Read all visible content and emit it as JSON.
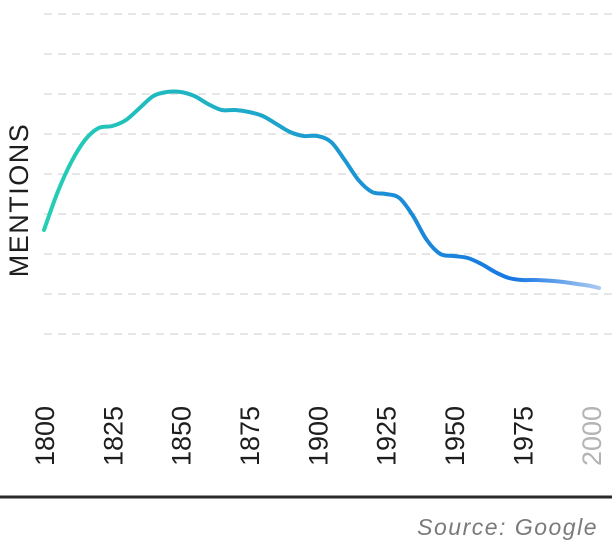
{
  "chart_data": {
    "type": "line",
    "title": "",
    "xlabel": "",
    "ylabel": "MENTIONS",
    "x": [
      1800,
      1805,
      1810,
      1815,
      1820,
      1825,
      1830,
      1835,
      1840,
      1845,
      1850,
      1855,
      1860,
      1865,
      1870,
      1875,
      1880,
      1885,
      1890,
      1895,
      1900,
      1905,
      1910,
      1915,
      1920,
      1925,
      1930,
      1935,
      1940,
      1945,
      1950,
      1955,
      1960,
      1965,
      1970,
      1975,
      1980,
      1985,
      1990,
      1995,
      2000,
      2003
    ],
    "series": [
      {
        "values": [
          3.6,
          4.55,
          5.3,
          5.85,
          6.15,
          6.2,
          6.35,
          6.65,
          6.95,
          7.05,
          7.05,
          6.95,
          6.75,
          6.6,
          6.6,
          6.55,
          6.45,
          6.25,
          6.05,
          5.95,
          5.95,
          5.8,
          5.35,
          4.85,
          4.55,
          4.5,
          4.4,
          3.95,
          3.35,
          3.0,
          2.95,
          2.9,
          2.75,
          2.55,
          2.4,
          2.35,
          2.35,
          2.33,
          2.3,
          2.25,
          2.2,
          2.15
        ]
      }
    ],
    "x_ticks": [
      "1800",
      "1825",
      "1850",
      "1875",
      "1900",
      "1925",
      "1950",
      "1975",
      "2000"
    ],
    "xlim": [
      1800,
      2003
    ],
    "ylim": [
      0,
      9
    ],
    "grid": true,
    "colors": {
      "line_start": "#23cfb4",
      "line_end": "#1877e3",
      "line_fade": "#a9c9f2",
      "future_tick": "#b4b4b4",
      "grid": "#dddddd"
    }
  },
  "source": "Source: Google"
}
